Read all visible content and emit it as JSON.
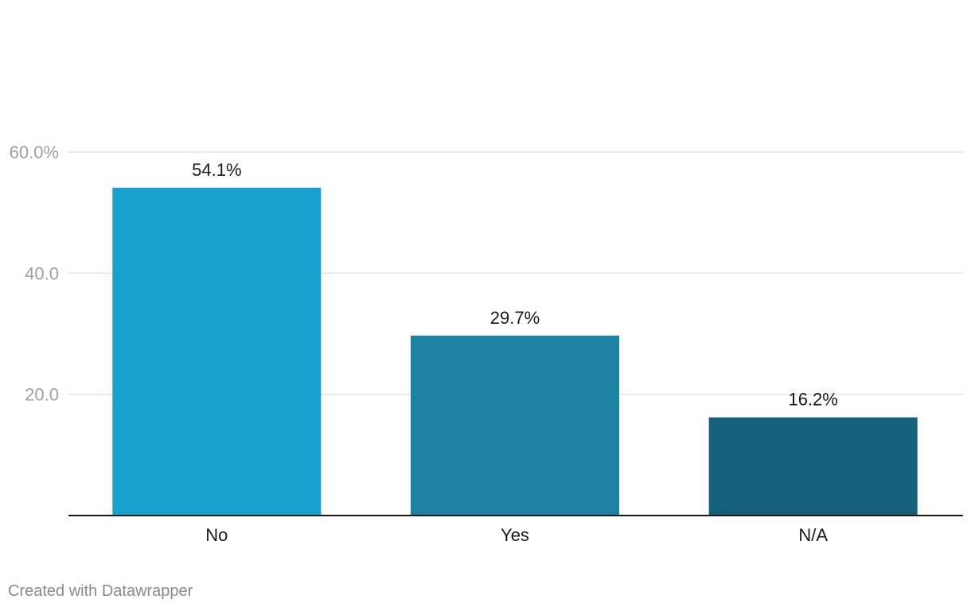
{
  "chart_data": {
    "type": "bar",
    "categories": [
      "No",
      "Yes",
      "N/A"
    ],
    "values": [
      54.1,
      29.7,
      16.2
    ],
    "value_labels": [
      "54.1%",
      "29.7%",
      "16.2%"
    ],
    "colors": [
      "#18a1cd",
      "#1d81a2",
      "#15607a"
    ],
    "yticks": [
      20,
      40,
      60
    ],
    "ytick_labels": [
      "20.0",
      "40.0",
      "60.0%"
    ],
    "ylim": [
      0,
      60
    ],
    "grid": true,
    "legend": "none",
    "title": "",
    "xlabel": "",
    "ylabel": ""
  },
  "footer": {
    "credit": "Created with Datawrapper"
  }
}
